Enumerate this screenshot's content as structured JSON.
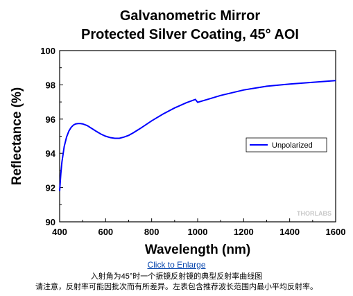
{
  "chart_data": {
    "type": "line",
    "title": "Galvanometric Mirror",
    "subtitle": "Protected Silver Coating, 45° AOI",
    "xlabel": "Wavelength (nm)",
    "ylabel": "Reflectance (%)",
    "xlim": [
      400,
      1600
    ],
    "ylim": [
      90,
      100
    ],
    "xticks": [
      400,
      600,
      800,
      1000,
      1200,
      1400,
      1600
    ],
    "yticks": [
      90,
      92,
      94,
      96,
      98,
      100
    ],
    "grid": false,
    "legend_position": "right",
    "series": [
      {
        "name": "Unpolarized",
        "color": "#0000ff",
        "x": [
          400,
          405,
          410,
          420,
          430,
          440,
          450,
          460,
          470,
          480,
          490,
          500,
          520,
          540,
          560,
          580,
          600,
          620,
          640,
          660,
          680,
          700,
          720,
          750,
          800,
          850,
          900,
          950,
          990,
          1000,
          1050,
          1100,
          1200,
          1300,
          1400,
          1500,
          1600
        ],
        "y": [
          91.8,
          92.8,
          93.5,
          94.4,
          94.95,
          95.3,
          95.52,
          95.65,
          95.72,
          95.74,
          95.74,
          95.72,
          95.62,
          95.45,
          95.28,
          95.12,
          95.0,
          94.92,
          94.88,
          94.88,
          94.95,
          95.05,
          95.2,
          95.45,
          95.9,
          96.3,
          96.65,
          96.95,
          97.15,
          96.98,
          97.18,
          97.38,
          97.7,
          97.92,
          98.05,
          98.15,
          98.25
        ]
      }
    ]
  },
  "watermark": "THORLABS",
  "link_text": "Click to Enlarge",
  "caption_line1": "入射角为45°时一个振镜反射镜的典型反射率曲线图",
  "caption_line2": "请注意，反射率可能因批次而有所差异。左表包含推荐波长范围内最小平均反射率。"
}
